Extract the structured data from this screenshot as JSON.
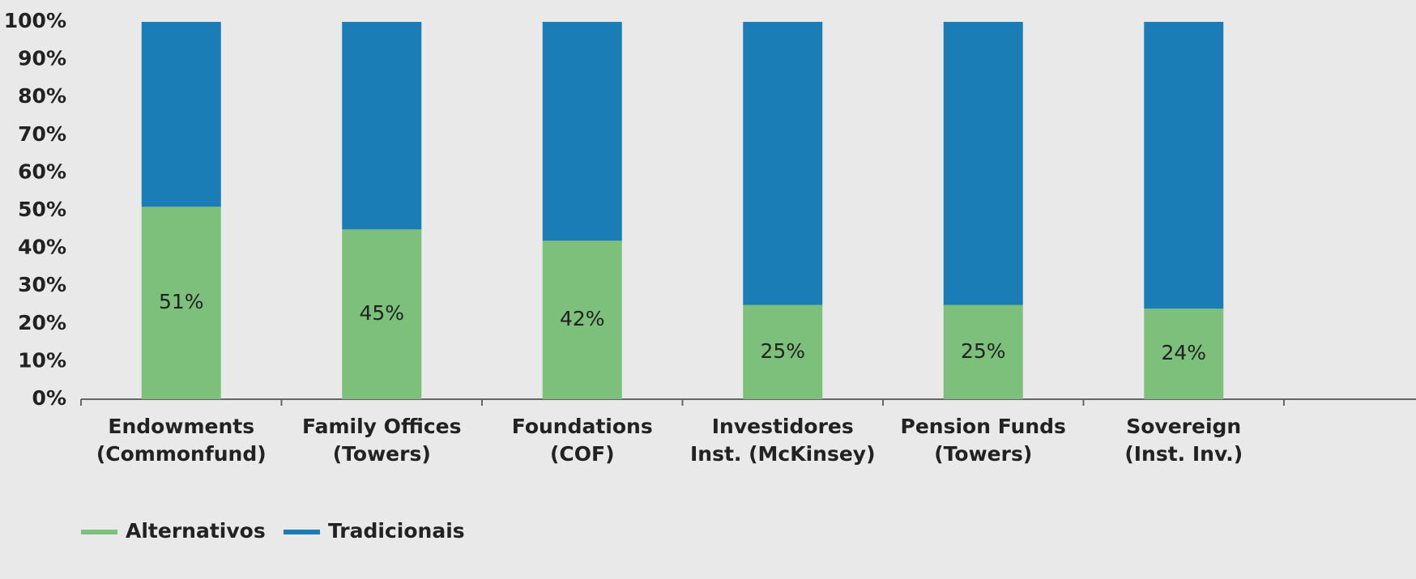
{
  "chart_data": {
    "type": "stacked_bar",
    "categories": [
      [
        "Endowments",
        "(Commonfund)"
      ],
      [
        "Family Offices",
        "(Towers)"
      ],
      [
        "Foundations",
        "(COF)"
      ],
      [
        "Investidores",
        "Inst. (McKinsey)"
      ],
      [
        "Pension Funds",
        "(Towers)"
      ],
      [
        "Sovereign",
        "(Inst. Inv.)"
      ]
    ],
    "series": [
      {
        "name": "Alternativos",
        "color": "#7cc07c",
        "values": [
          51,
          45,
          42,
          25,
          25,
          24
        ],
        "value_labels": [
          "51%",
          "45%",
          "42%",
          "25%",
          "25%",
          "24%"
        ]
      },
      {
        "name": "Tradicionais",
        "color": "#1a7db6",
        "values": [
          49,
          55,
          58,
          75,
          75,
          76
        ]
      }
    ],
    "ylim": [
      0,
      100
    ],
    "yticks": [
      {
        "value": 0,
        "label": "0%"
      },
      {
        "value": 10,
        "label": "10%"
      },
      {
        "value": 20,
        "label": "20%"
      },
      {
        "value": 30,
        "label": "30%"
      },
      {
        "value": 40,
        "label": "40%"
      },
      {
        "value": 50,
        "label": "50%"
      },
      {
        "value": 60,
        "label": "60%"
      },
      {
        "value": 70,
        "label": "70%"
      },
      {
        "value": 80,
        "label": "80%"
      },
      {
        "value": 90,
        "label": "90%"
      },
      {
        "value": 100,
        "label": "100%"
      }
    ],
    "legend": "bottom-left"
  }
}
